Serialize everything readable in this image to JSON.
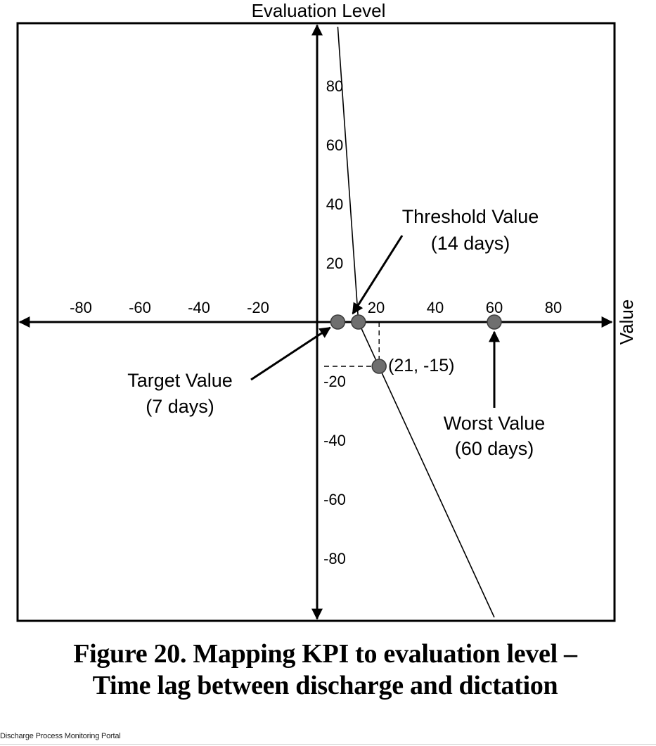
{
  "chart_data": {
    "type": "line",
    "title": "Figure 20. Mapping KPI to evaluation level – Time lag between discharge and dictation",
    "caption_lines": [
      "Figure 20. Mapping KPI to evaluation level –",
      "Time lag between discharge and dictation"
    ],
    "xlabel": "Value",
    "ylabel": "Evaluation Level",
    "xlim": [
      -100,
      100
    ],
    "ylim": [
      -100,
      100
    ],
    "x_ticks": [
      -80,
      -60,
      -40,
      -20,
      20,
      40,
      60,
      80
    ],
    "y_ticks": [
      80,
      60,
      40,
      20,
      -20,
      -40,
      -60,
      -80
    ],
    "grid": false,
    "series": [
      {
        "x": [
          7,
          14,
          60
        ],
        "y": [
          100,
          0,
          -100
        ]
      }
    ],
    "points": [
      {
        "x": 7,
        "y": 0
      },
      {
        "x": 14,
        "y": 0
      },
      {
        "x": 21,
        "y": -15,
        "label": "(21, -15)"
      },
      {
        "x": 60,
        "y": 0
      }
    ],
    "annotations": [
      {
        "lines": [
          "Threshold Value",
          "(14 days)"
        ],
        "points_to": [
          14,
          0
        ]
      },
      {
        "lines": [
          "Target Value",
          "(7 days)"
        ],
        "points_to": [
          7,
          0
        ]
      },
      {
        "lines": [
          "Worst Value",
          "(60 days)"
        ],
        "points_to": [
          60,
          0
        ]
      }
    ],
    "colors": {
      "marker": "#6f6f6f",
      "marker_stroke": "#3c3c3c",
      "line": "#000000"
    }
  },
  "footer": {
    "app_name": "Discharge Process Monitoring Portal"
  }
}
